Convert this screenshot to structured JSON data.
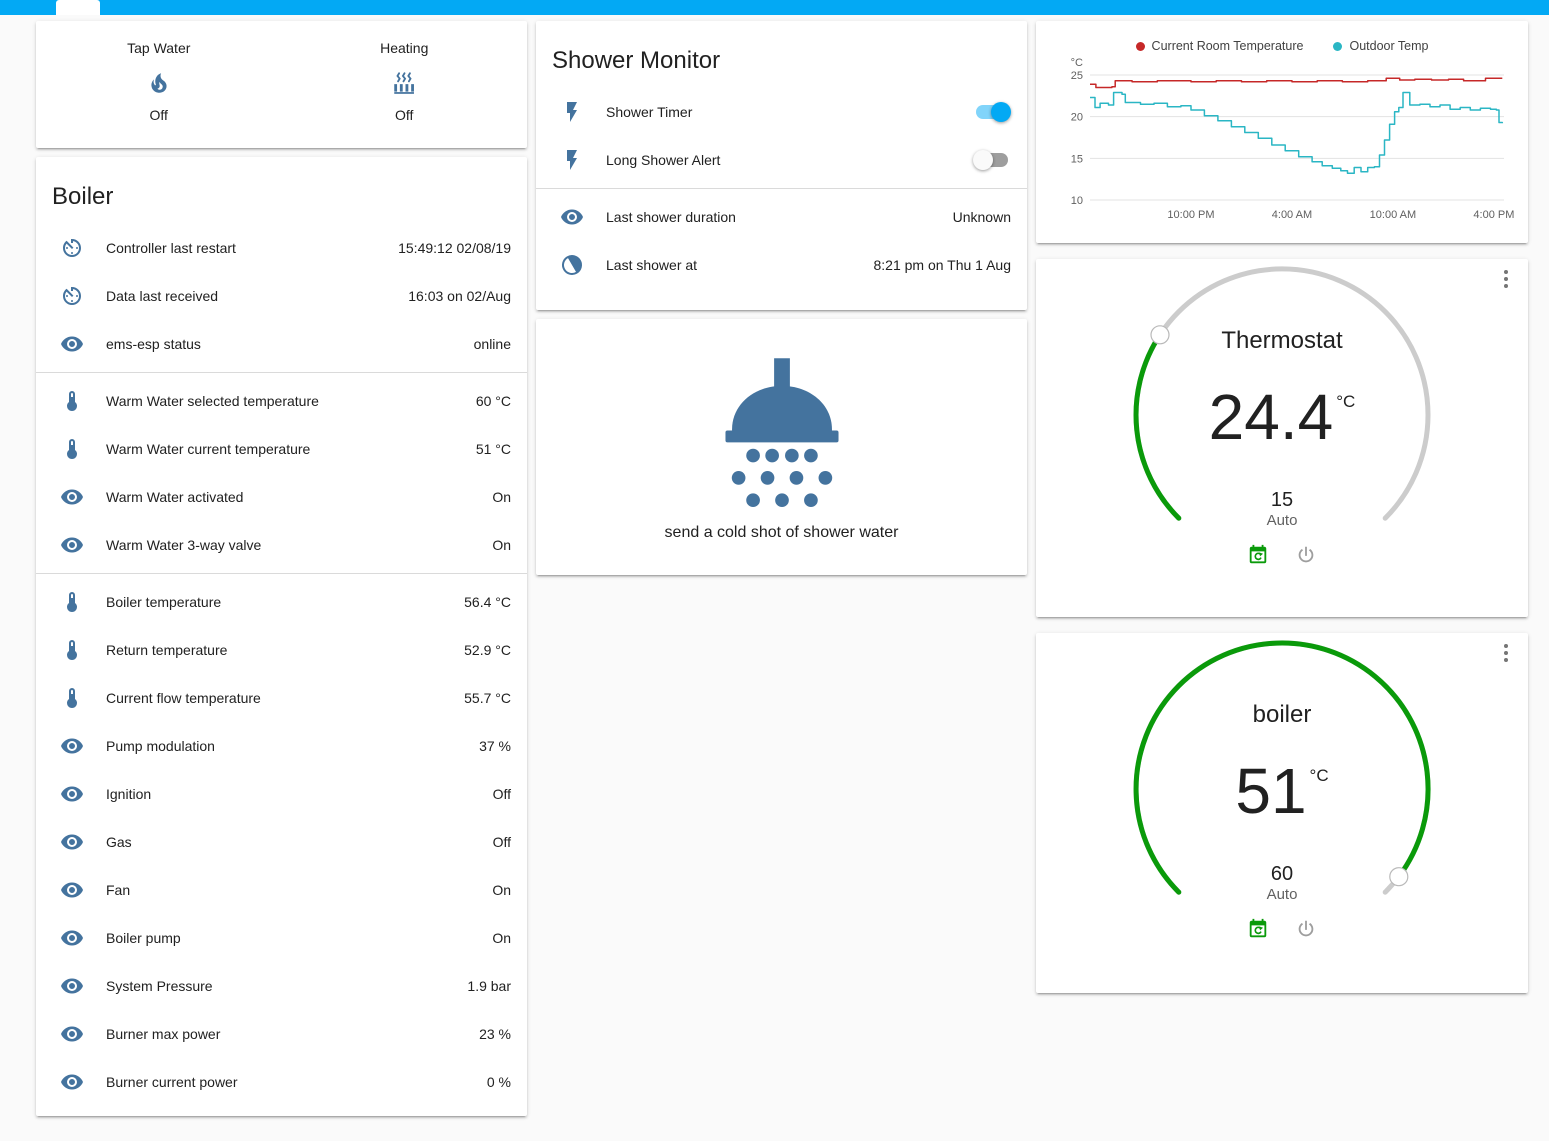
{
  "colors": {
    "header": "#03a9f4",
    "accent": "#03a9f4",
    "entity_icon": "#44739e",
    "flash_yellow": "#fbc02d",
    "flash_blue": "#2e6be5",
    "dial_green": "#0a9a0a",
    "dial_gray": "#cccccc",
    "room_line": "#c62828",
    "outdoor_line": "#2ab6c4"
  },
  "glance": {
    "items": [
      {
        "label": "Tap Water",
        "state": "Off",
        "icon": "fire-icon"
      },
      {
        "label": "Heating",
        "state": "Off",
        "icon": "radiator-icon"
      }
    ]
  },
  "boiler_card": {
    "title": "Boiler",
    "rows": [
      {
        "name": "Controller last restart",
        "value": "15:49:12 02/08/19",
        "icon": "timer-icon"
      },
      {
        "name": "Data last received",
        "value": "16:03 on 02/Aug",
        "icon": "timer-icon"
      },
      {
        "name": "ems-esp status",
        "value": "online",
        "icon": "eye-icon"
      },
      {
        "name": "Warm Water selected temperature",
        "value": "60 °C",
        "icon": "thermometer-icon"
      },
      {
        "name": "Warm Water current temperature",
        "value": "51 °C",
        "icon": "thermometer-icon"
      },
      {
        "name": "Warm Water activated",
        "value": "On",
        "icon": "eye-icon"
      },
      {
        "name": "Warm Water 3-way valve",
        "value": "On",
        "icon": "eye-icon"
      },
      {
        "name": "Boiler temperature",
        "value": "56.4 °C",
        "icon": "thermometer-icon"
      },
      {
        "name": "Return temperature",
        "value": "52.9 °C",
        "icon": "thermometer-icon"
      },
      {
        "name": "Current flow temperature",
        "value": "55.7 °C",
        "icon": "thermometer-icon"
      },
      {
        "name": "Pump modulation",
        "value": "37 %",
        "icon": "eye-icon"
      },
      {
        "name": "Ignition",
        "value": "Off",
        "icon": "eye-icon"
      },
      {
        "name": "Gas",
        "value": "Off",
        "icon": "eye-icon"
      },
      {
        "name": "Fan",
        "value": "On",
        "icon": "eye-icon"
      },
      {
        "name": "Boiler pump",
        "value": "On",
        "icon": "eye-icon"
      },
      {
        "name": "System Pressure",
        "value": "1.9 bar",
        "icon": "eye-icon"
      },
      {
        "name": "Burner max power",
        "value": "23 %",
        "icon": "eye-icon"
      },
      {
        "name": "Burner current power",
        "value": "0 %",
        "icon": "eye-icon"
      }
    ]
  },
  "shower_monitor": {
    "title": "Shower Monitor",
    "toggles": [
      {
        "name": "Shower Timer",
        "on": true,
        "icon": "flash-icon"
      },
      {
        "name": "Long Shower Alert",
        "on": false,
        "icon": "flash-icon"
      }
    ],
    "rows": [
      {
        "name": "Last shower duration",
        "value": "Unknown",
        "icon": "eye-icon"
      },
      {
        "name": "Last shower at",
        "value": "8:21 pm on Thu 1 Aug",
        "icon": "moon-icon"
      }
    ]
  },
  "shower_card": {
    "caption": "send a cold shot of shower water",
    "icon": "shower-head-icon"
  },
  "chart_data": {
    "type": "line",
    "title": "",
    "ylabel": "°C",
    "ylim": [
      10,
      25
    ],
    "yticks": [
      10,
      15,
      20,
      25
    ],
    "xlim": [
      0,
      24.6
    ],
    "x_unit": "hours elapsed (x=0 is 4:00 PM previous day)",
    "xticks": [
      {
        "x": 6,
        "label": "10:00 PM"
      },
      {
        "x": 12,
        "label": "4:00 AM"
      },
      {
        "x": 18,
        "label": "10:00 AM"
      },
      {
        "x": 24,
        "label": "4:00 PM"
      }
    ],
    "grid": "horizontal",
    "legend_position": "top",
    "series": [
      {
        "name": "Current Room Temperature",
        "color": "#c62828",
        "points": [
          [
            0,
            23.9
          ],
          [
            0.35,
            23.5
          ],
          [
            1.3,
            23.6
          ],
          [
            1.5,
            24.3
          ],
          [
            2.5,
            24.2
          ],
          [
            4,
            24.3
          ],
          [
            6,
            24.2
          ],
          [
            7.5,
            24.3
          ],
          [
            9,
            24.2
          ],
          [
            10.5,
            24.3
          ],
          [
            12,
            24.2
          ],
          [
            13.5,
            24.3
          ],
          [
            15,
            24.2
          ],
          [
            16.5,
            24.3
          ],
          [
            17.6,
            24.6
          ],
          [
            18.4,
            24.4
          ],
          [
            19.3,
            24.5
          ],
          [
            20.3,
            24.4
          ],
          [
            21.3,
            24.5
          ],
          [
            22.2,
            24.3
          ],
          [
            23.3,
            24.3
          ],
          [
            23.5,
            24.6
          ],
          [
            24.5,
            24.6
          ]
        ]
      },
      {
        "name": "Outdoor Temp",
        "color": "#2ab6c4",
        "points": [
          [
            0,
            22.3
          ],
          [
            0.3,
            21.1
          ],
          [
            0.6,
            21.6
          ],
          [
            1.1,
            21.4
          ],
          [
            1.4,
            22.9
          ],
          [
            1.9,
            22.7
          ],
          [
            2.1,
            21.7
          ],
          [
            3,
            21.5
          ],
          [
            3.8,
            21.6
          ],
          [
            4.6,
            21.2
          ],
          [
            5.4,
            21.3
          ],
          [
            6,
            20.8
          ],
          [
            6.8,
            20.1
          ],
          [
            7.6,
            19.5
          ],
          [
            8.4,
            18.8
          ],
          [
            9.2,
            18.1
          ],
          [
            10,
            17.4
          ],
          [
            10.8,
            16.6
          ],
          [
            11.6,
            15.9
          ],
          [
            12.4,
            15.2
          ],
          [
            13.2,
            14.6
          ],
          [
            13.8,
            14.1
          ],
          [
            14.4,
            13.8
          ],
          [
            14.9,
            13.5
          ],
          [
            15.3,
            13.2
          ],
          [
            15.7,
            13.9
          ],
          [
            16.1,
            13.4
          ],
          [
            16.5,
            13.9
          ],
          [
            16.9,
            14.0
          ],
          [
            17.2,
            15.4
          ],
          [
            17.5,
            17.2
          ],
          [
            17.8,
            19.1
          ],
          [
            18.1,
            20.6
          ],
          [
            18.35,
            21.1
          ],
          [
            18.6,
            22.9
          ],
          [
            19,
            21.4
          ],
          [
            19.6,
            21.5
          ],
          [
            20.2,
            21.2
          ],
          [
            20.8,
            21.4
          ],
          [
            21.4,
            20.9
          ],
          [
            22,
            21.1
          ],
          [
            22.6,
            20.8
          ],
          [
            23.2,
            21.0
          ],
          [
            23.8,
            20.9
          ],
          [
            24.15,
            20.8
          ],
          [
            24.3,
            19.3
          ],
          [
            24.5,
            19.2
          ]
        ]
      }
    ]
  },
  "thermostat": {
    "title": "Thermostat",
    "value": "24.4",
    "unit": "°C",
    "target": "15",
    "mode": "Auto",
    "fraction": 0.29,
    "icons": [
      "calendar-sync-icon",
      "power-icon"
    ]
  },
  "boiler_dial": {
    "title": "boiler",
    "value": "51",
    "unit": "°C",
    "target": "60",
    "mode": "Auto",
    "fraction": 0.97,
    "icons": [
      "calendar-sync-icon",
      "power-icon"
    ]
  }
}
